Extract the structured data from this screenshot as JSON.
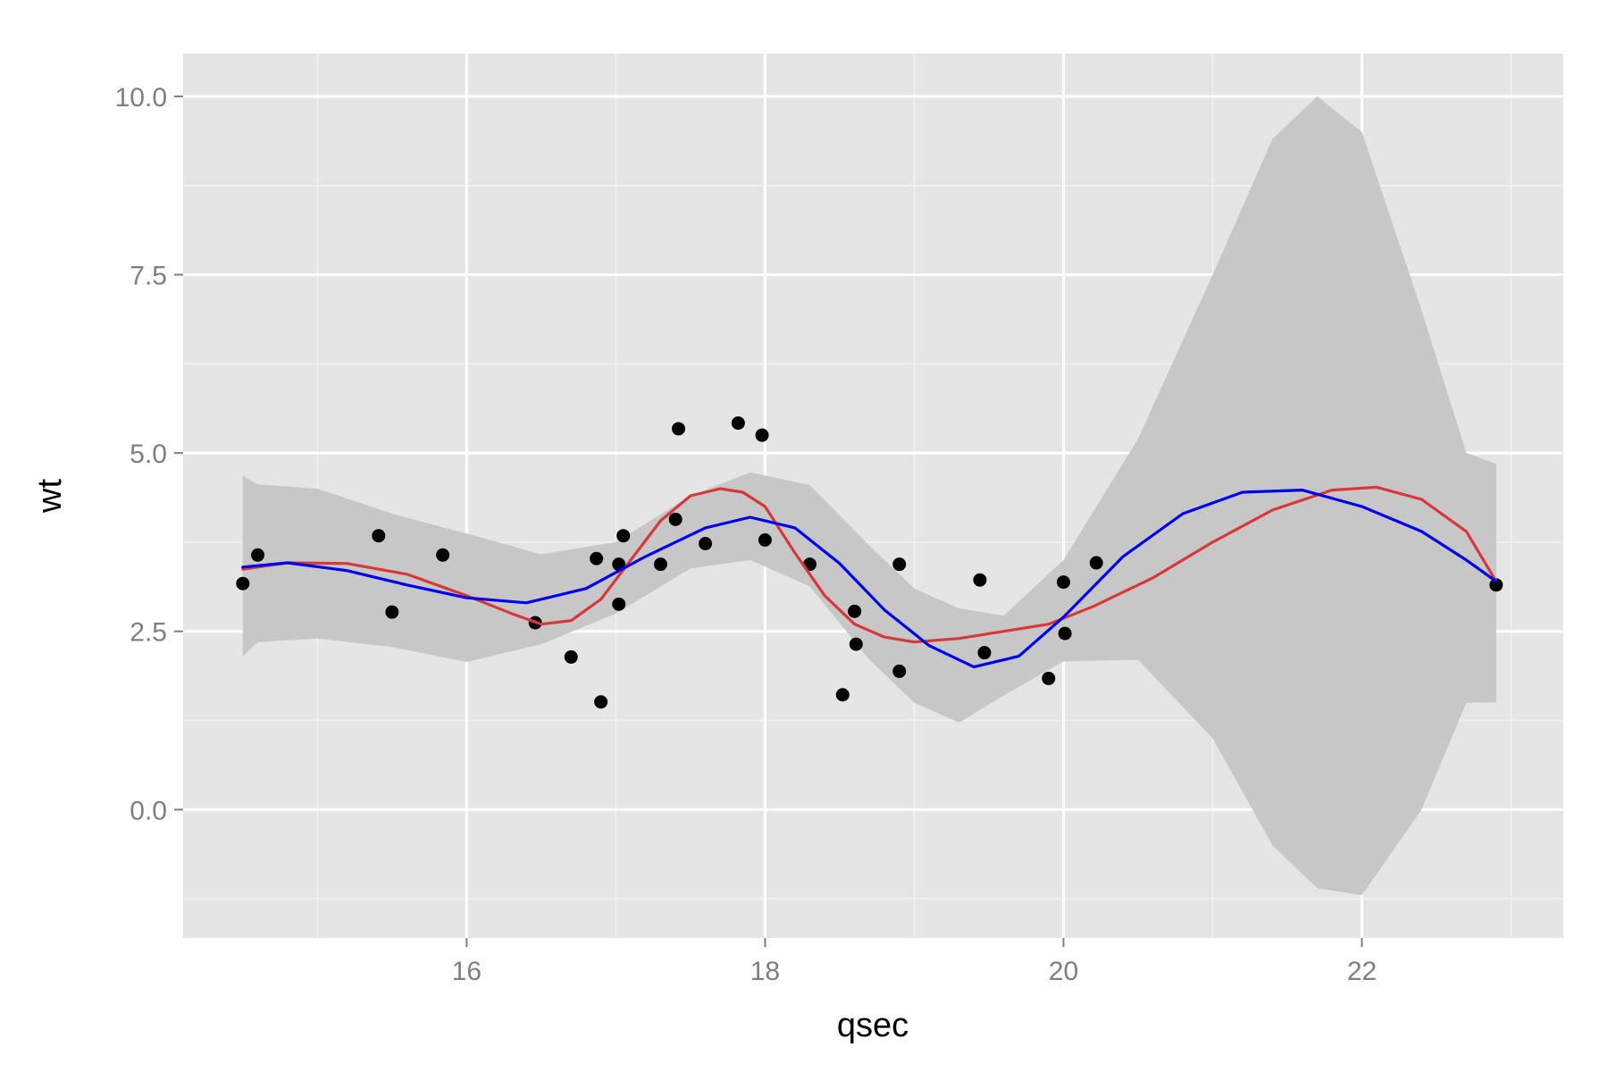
{
  "chart_data": {
    "type": "scatter",
    "title": "",
    "xlabel": "qsec",
    "ylabel": "wt",
    "xlim": [
      14.1,
      23.35
    ],
    "ylim": [
      -1.8,
      10.6
    ],
    "x_ticks": [
      16,
      18,
      20,
      22
    ],
    "x_tick_labels": [
      "16",
      "18",
      "20",
      "22"
    ],
    "x_minor": [
      15,
      17,
      19,
      21,
      23
    ],
    "y_ticks": [
      0,
      2.5,
      5,
      7.5,
      10
    ],
    "y_tick_labels": [
      "0.0",
      "2.5",
      "5.0",
      "7.5",
      "10.0"
    ],
    "y_minor": [
      -1.25,
      1.25,
      3.75,
      6.25,
      8.75
    ],
    "grid": true,
    "legend": "none",
    "colors": {
      "panel": "#e5e5e5",
      "grid_major": "#ffffff",
      "grid_minor": "#f2f2f2",
      "ribbon": "#c7c7c7",
      "points": "#000000",
      "red": "#d7383a",
      "blue": "#0000ee"
    },
    "points": {
      "x": [
        14.5,
        14.6,
        15.41,
        15.5,
        15.84,
        16.46,
        16.7,
        16.87,
        16.9,
        17.02,
        17.02,
        17.05,
        17.3,
        17.4,
        17.42,
        17.6,
        17.82,
        17.98,
        18.0,
        18.3,
        18.52,
        18.6,
        18.61,
        18.9,
        18.9,
        19.44,
        19.47,
        19.9,
        20.0,
        20.01,
        20.22,
        22.9
      ],
      "y": [
        3.17,
        3.57,
        3.84,
        2.77,
        3.57,
        2.62,
        2.14,
        3.52,
        1.51,
        3.44,
        2.88,
        3.84,
        3.44,
        4.07,
        5.34,
        3.73,
        5.42,
        5.25,
        3.78,
        3.44,
        1.61,
        2.78,
        2.32,
        3.44,
        1.94,
        3.22,
        2.2,
        1.84,
        3.19,
        2.47,
        3.46,
        3.15
      ]
    },
    "ribbon": {
      "x": [
        14.5,
        14.6,
        15.0,
        15.5,
        16.0,
        16.5,
        17.0,
        17.5,
        17.9,
        18.3,
        18.7,
        19.0,
        19.3,
        19.6,
        20.0,
        20.5,
        21.0,
        21.4,
        21.7,
        22.0,
        22.4,
        22.7,
        22.9
      ],
      "upper": [
        4.68,
        4.56,
        4.5,
        4.15,
        3.87,
        3.58,
        3.75,
        4.4,
        4.73,
        4.55,
        3.7,
        3.1,
        2.82,
        2.72,
        3.5,
        5.2,
        7.5,
        9.4,
        10.0,
        9.5,
        7.0,
        5.0,
        4.85
      ],
      "lower": [
        2.15,
        2.35,
        2.4,
        2.28,
        2.07,
        2.32,
        2.75,
        3.38,
        3.5,
        3.13,
        2.1,
        1.5,
        1.22,
        1.6,
        2.08,
        2.1,
        1.0,
        -0.5,
        -1.1,
        -1.2,
        0.0,
        1.5,
        1.5
      ]
    },
    "series": [
      {
        "color": "red",
        "x": [
          14.5,
          14.8,
          15.2,
          15.6,
          16.0,
          16.3,
          16.5,
          16.7,
          16.9,
          17.1,
          17.3,
          17.5,
          17.7,
          17.85,
          18.0,
          18.2,
          18.4,
          18.6,
          18.8,
          19.0,
          19.3,
          19.6,
          19.9,
          20.2,
          20.6,
          21.0,
          21.4,
          21.8,
          22.1,
          22.4,
          22.7,
          22.9
        ],
        "y": [
          3.37,
          3.46,
          3.45,
          3.3,
          3.0,
          2.75,
          2.6,
          2.65,
          2.95,
          3.5,
          4.05,
          4.4,
          4.5,
          4.45,
          4.25,
          3.6,
          3.0,
          2.6,
          2.42,
          2.35,
          2.4,
          2.5,
          2.6,
          2.85,
          3.25,
          3.75,
          4.2,
          4.48,
          4.52,
          4.35,
          3.9,
          3.2
        ]
      },
      {
        "color": "blue",
        "x": [
          14.5,
          14.8,
          15.2,
          15.6,
          16.0,
          16.4,
          16.8,
          17.2,
          17.6,
          17.9,
          18.2,
          18.5,
          18.8,
          19.1,
          19.4,
          19.7,
          20.0,
          20.4,
          20.8,
          21.2,
          21.6,
          22.0,
          22.4,
          22.7,
          22.9
        ],
        "y": [
          3.4,
          3.46,
          3.35,
          3.15,
          2.97,
          2.9,
          3.1,
          3.55,
          3.95,
          4.1,
          3.95,
          3.45,
          2.8,
          2.3,
          2.0,
          2.15,
          2.7,
          3.55,
          4.15,
          4.45,
          4.48,
          4.25,
          3.9,
          3.5,
          3.2
        ]
      }
    ]
  }
}
